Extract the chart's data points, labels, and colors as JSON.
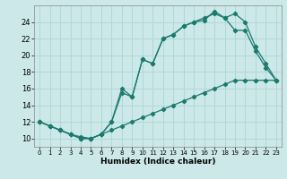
{
  "xlabel": "Humidex (Indice chaleur)",
  "bg_color": "#cce8e8",
  "grid_color": "#b0d8d8",
  "line_color": "#1a7a6e",
  "xlim": [
    -0.5,
    23.5
  ],
  "ylim": [
    9.0,
    26.0
  ],
  "xticks": [
    0,
    1,
    2,
    3,
    4,
    5,
    6,
    7,
    8,
    9,
    10,
    11,
    12,
    13,
    14,
    15,
    16,
    17,
    18,
    19,
    20,
    21,
    22,
    23
  ],
  "yticks": [
    10,
    12,
    14,
    16,
    18,
    20,
    22,
    24
  ],
  "line1_x": [
    0,
    1,
    2,
    3,
    4,
    5,
    6,
    7,
    8,
    9,
    10,
    11,
    12,
    13,
    14,
    15,
    16,
    17,
    18,
    19,
    20,
    21,
    22,
    23
  ],
  "line1_y": [
    12,
    11.5,
    11,
    10.5,
    10.0,
    10.0,
    10.5,
    11.0,
    11.5,
    12.0,
    12.5,
    13.0,
    13.5,
    14.0,
    14.5,
    15.0,
    15.5,
    16.0,
    16.5,
    17.0,
    17.0,
    17.0,
    17.0,
    17.0
  ],
  "line2_x": [
    0,
    1,
    2,
    3,
    4,
    5,
    6,
    7,
    8,
    9,
    10,
    11,
    12,
    13,
    14,
    15,
    16,
    17,
    18,
    19,
    20,
    21,
    22,
    23
  ],
  "line2_y": [
    12,
    11.5,
    11,
    10.5,
    10.2,
    10.0,
    10.5,
    12.0,
    16.0,
    15.0,
    19.5,
    19.0,
    22.0,
    22.5,
    23.5,
    24.0,
    24.5,
    25.0,
    24.5,
    23.0,
    23.0,
    20.5,
    18.5,
    17.0
  ],
  "line3_x": [
    0,
    1,
    2,
    3,
    4,
    5,
    6,
    7,
    8,
    9,
    10,
    11,
    12,
    13,
    14,
    15,
    16,
    17,
    18,
    19,
    20,
    21,
    22,
    23
  ],
  "line3_y": [
    12,
    11.5,
    11,
    10.5,
    10.0,
    10.0,
    10.5,
    12.0,
    15.5,
    15.0,
    19.5,
    19.0,
    22.0,
    22.5,
    23.5,
    24.0,
    24.2,
    25.3,
    24.5,
    25.0,
    24.0,
    21.0,
    19.0,
    17.0
  ]
}
